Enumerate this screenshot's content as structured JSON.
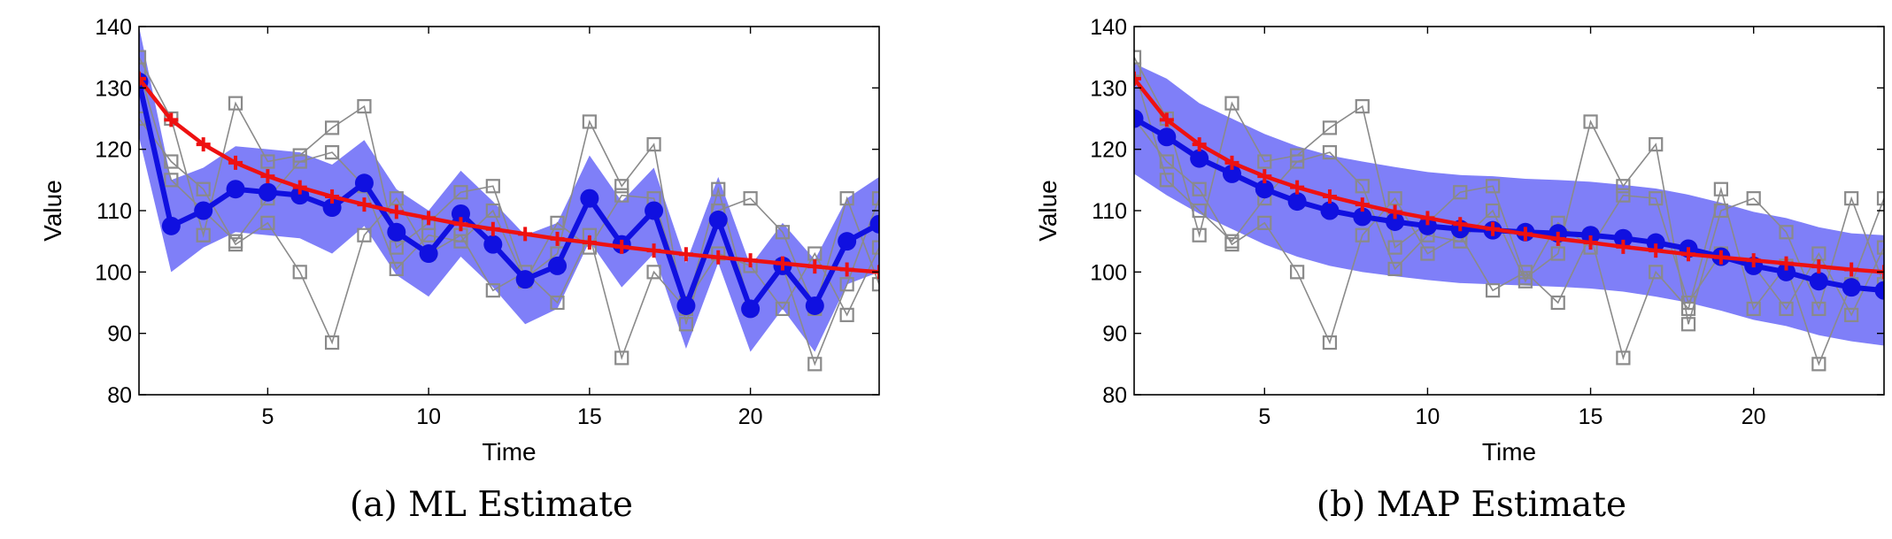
{
  "figure": {
    "captions": [
      "(a) ML Estimate",
      "(b) MAP Estimate"
    ]
  },
  "colors": {
    "band": "#7f7ff8",
    "estimate": "#1010e0",
    "truth": "#ee1111",
    "observations": "#8a8a8a"
  },
  "chart_data": [
    {
      "type": "line",
      "title": "",
      "caption": "(a) ML Estimate",
      "xlabel": "Time",
      "ylabel": "Value",
      "xlim": [
        1,
        24
      ],
      "ylim": [
        80,
        140
      ],
      "xticks": [
        5,
        10,
        15,
        20
      ],
      "yticks": [
        80,
        90,
        100,
        110,
        120,
        130,
        140
      ],
      "grid": false,
      "legend": "none",
      "series": [
        {
          "role": "truth",
          "style": "red line with plus markers",
          "x": [
            1,
            2,
            3,
            4,
            5,
            6,
            7,
            8,
            9,
            10,
            11,
            12,
            13,
            14,
            15,
            16,
            17,
            18,
            19,
            20,
            21,
            22,
            23,
            24
          ],
          "values": [
            131.5,
            124.8,
            120.8,
            117.8,
            115.6,
            113.8,
            112.3,
            111,
            109.8,
            108.8,
            107.8,
            107,
            106.2,
            105.4,
            104.8,
            104.1,
            103.5,
            102.9,
            102.4,
            101.9,
            101.4,
            100.9,
            100.4,
            100
          ]
        },
        {
          "role": "estimate",
          "style": "thick blue line with filled circle markers",
          "x": [
            1,
            2,
            3,
            4,
            5,
            6,
            7,
            8,
            9,
            10,
            11,
            12,
            13,
            14,
            15,
            16,
            17,
            18,
            19,
            20,
            21,
            22,
            23,
            24
          ],
          "values": [
            131,
            107.5,
            110,
            113.5,
            113,
            112.5,
            110.5,
            114.5,
            106.5,
            103,
            109.5,
            104.5,
            98.8,
            101,
            112,
            104.5,
            110,
            94.5,
            108.5,
            94,
            101,
            94.5,
            105,
            107.8
          ],
          "band_lower": [
            122,
            100,
            104,
            106.5,
            106,
            105.5,
            103,
            107.5,
            99.5,
            96,
            102.5,
            97.5,
            91.5,
            94,
            105,
            97.5,
            103,
            87.5,
            101.5,
            87,
            94,
            87,
            98,
            100
          ],
          "band_upper": [
            140,
            115,
            117,
            120.5,
            120,
            119.5,
            117.5,
            121.5,
            113.5,
            110,
            116.5,
            111.5,
            106,
            108,
            119,
            111.5,
            117,
            101.5,
            115.5,
            101,
            108,
            102,
            112,
            115.5
          ]
        },
        {
          "role": "observation",
          "style": "thin grey line with open square markers",
          "x": [
            1,
            2,
            3,
            4,
            5,
            6,
            7,
            8,
            9,
            10,
            11,
            12,
            13,
            14,
            15,
            16,
            17,
            18,
            19,
            20,
            21,
            22,
            23,
            24
          ],
          "values": [
            135,
            125,
            106,
            127.5,
            118,
            119,
            123.5,
            127,
            104,
            108,
            113,
            114,
            99,
            103,
            124.5,
            114,
            120.8,
            91.5,
            110,
            112,
            106.5,
            94,
            112,
            98
          ]
        },
        {
          "role": "observation",
          "style": "thin grey line with open square markers",
          "x": [
            1,
            2,
            3,
            4,
            5,
            6,
            7,
            8,
            9,
            10,
            11,
            12,
            13,
            14,
            15,
            16,
            17,
            18,
            19,
            20,
            21,
            22,
            23,
            24
          ],
          "values": [
            125,
            118,
            113.5,
            104.5,
            108,
            100,
            88.5,
            106,
            112,
            103,
            106,
            97,
            100,
            95,
            106,
            86,
            100,
            94,
            113.5,
            94,
            101,
            85,
            98,
            112
          ]
        },
        {
          "role": "observation",
          "style": "thin grey line with open square markers",
          "x": [
            1,
            2,
            3,
            4,
            5,
            6,
            7,
            8,
            9,
            10,
            11,
            12,
            13,
            14,
            15,
            16,
            17,
            18,
            19,
            20,
            21,
            22,
            23,
            24
          ],
          "values": [
            133,
            115,
            110,
            105,
            112,
            118,
            119.5,
            114,
            100.5,
            106,
            105,
            110,
            98.5,
            108,
            104,
            112.5,
            112,
            95,
            103,
            101,
            94,
            103,
            93,
            104
          ]
        }
      ]
    },
    {
      "type": "line",
      "title": "",
      "caption": "(b) MAP Estimate",
      "xlabel": "Time",
      "ylabel": "Value",
      "xlim": [
        1,
        24
      ],
      "ylim": [
        80,
        140
      ],
      "xticks": [
        5,
        10,
        15,
        20
      ],
      "yticks": [
        80,
        90,
        100,
        110,
        120,
        130,
        140
      ],
      "grid": false,
      "legend": "none",
      "series": [
        {
          "role": "truth",
          "style": "red line with plus markers",
          "x": [
            1,
            2,
            3,
            4,
            5,
            6,
            7,
            8,
            9,
            10,
            11,
            12,
            13,
            14,
            15,
            16,
            17,
            18,
            19,
            20,
            21,
            22,
            23,
            24
          ],
          "values": [
            131.5,
            124.8,
            120.8,
            117.8,
            115.6,
            113.8,
            112.3,
            111,
            109.8,
            108.8,
            107.8,
            107,
            106.2,
            105.4,
            104.8,
            104.1,
            103.5,
            102.9,
            102.4,
            101.9,
            101.4,
            100.9,
            100.4,
            100
          ]
        },
        {
          "role": "estimate",
          "style": "thick blue line with filled circle markers",
          "x": [
            1,
            2,
            3,
            4,
            5,
            6,
            7,
            8,
            9,
            10,
            11,
            12,
            13,
            14,
            15,
            16,
            17,
            18,
            19,
            20,
            21,
            22,
            23,
            24
          ],
          "values": [
            125,
            122,
            118.5,
            116,
            113.5,
            111.5,
            110,
            109,
            108.2,
            107.5,
            107,
            106.8,
            106.5,
            106.3,
            106,
            105.5,
            104.8,
            103.8,
            102.5,
            101,
            100,
            98.5,
            97.5,
            97
          ],
          "band_lower": [
            116,
            112.5,
            109.5,
            107,
            104.5,
            102.5,
            101,
            100,
            99.3,
            98.7,
            98.2,
            98,
            97.8,
            97.6,
            97.3,
            96.8,
            96,
            95,
            93.7,
            92.2,
            91.2,
            89.7,
            88.7,
            88
          ],
          "band_upper": [
            134,
            131.5,
            127.5,
            125,
            122.5,
            120.5,
            119,
            118,
            117.1,
            116.3,
            115.8,
            115.6,
            115.2,
            115,
            114.7,
            114.2,
            113.6,
            112.6,
            111.3,
            109.8,
            108.8,
            107.3,
            106.3,
            106
          ]
        },
        {
          "role": "observation",
          "style": "thin grey line with open square markers",
          "x": [
            1,
            2,
            3,
            4,
            5,
            6,
            7,
            8,
            9,
            10,
            11,
            12,
            13,
            14,
            15,
            16,
            17,
            18,
            19,
            20,
            21,
            22,
            23,
            24
          ],
          "values": [
            135,
            125,
            106,
            127.5,
            118,
            119,
            123.5,
            127,
            104,
            108,
            113,
            114,
            99,
            103,
            124.5,
            114,
            120.8,
            91.5,
            110,
            112,
            106.5,
            94,
            112,
            98
          ]
        },
        {
          "role": "observation",
          "style": "thin grey line with open square markers",
          "x": [
            1,
            2,
            3,
            4,
            5,
            6,
            7,
            8,
            9,
            10,
            11,
            12,
            13,
            14,
            15,
            16,
            17,
            18,
            19,
            20,
            21,
            22,
            23,
            24
          ],
          "values": [
            125,
            118,
            113.5,
            104.5,
            108,
            100,
            88.5,
            106,
            112,
            103,
            106,
            97,
            100,
            95,
            106,
            86,
            100,
            94,
            113.5,
            94,
            101,
            85,
            98,
            112
          ]
        },
        {
          "role": "observation",
          "style": "thin grey line with open square markers",
          "x": [
            1,
            2,
            3,
            4,
            5,
            6,
            7,
            8,
            9,
            10,
            11,
            12,
            13,
            14,
            15,
            16,
            17,
            18,
            19,
            20,
            21,
            22,
            23,
            24
          ],
          "values": [
            133,
            115,
            110,
            105,
            112,
            118,
            119.5,
            114,
            100.5,
            106,
            105,
            110,
            98.5,
            108,
            104,
            112.5,
            112,
            95,
            103,
            101,
            94,
            103,
            93,
            104
          ]
        }
      ]
    }
  ]
}
